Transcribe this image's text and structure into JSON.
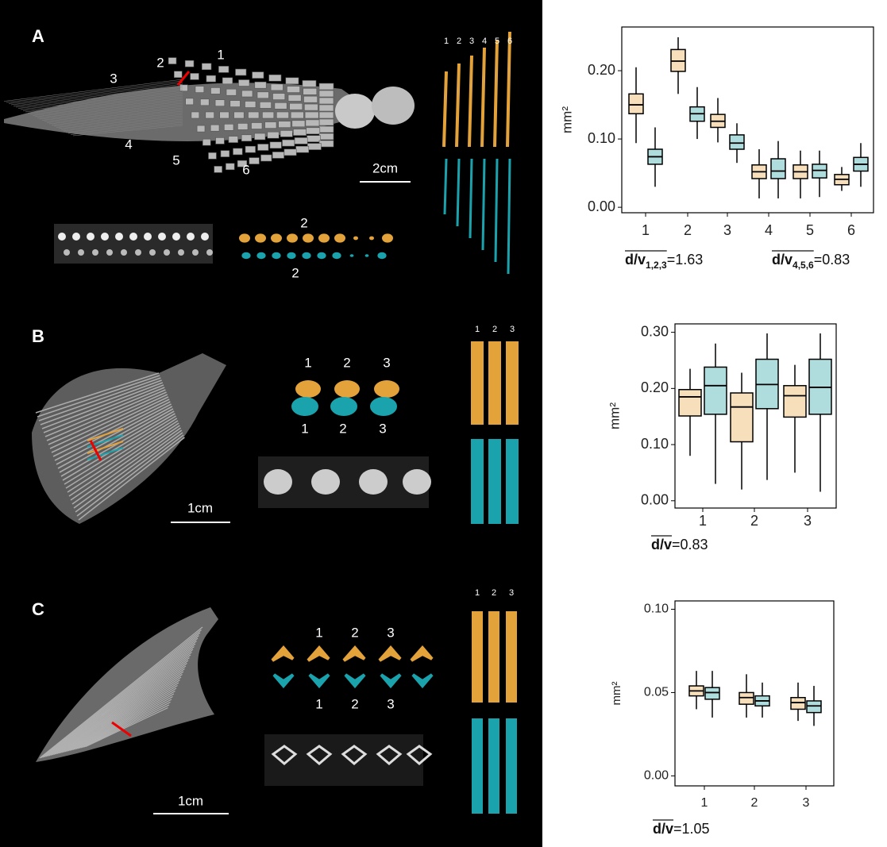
{
  "panels": [
    {
      "letter": "A",
      "fin_labels": [
        "1",
        "2",
        "3",
        "4",
        "5",
        "6"
      ],
      "scale_bar": "2cm",
      "section_labels": [
        "2",
        "2"
      ],
      "column_labels": [
        "1",
        "2",
        "3",
        "4",
        "5",
        "6"
      ]
    },
    {
      "letter": "B",
      "scale_bar": "1cm",
      "section_labels_top": [
        "1",
        "2",
        "3"
      ],
      "section_labels_bottom": [
        "1",
        "2",
        "3"
      ],
      "column_labels": [
        "1",
        "2",
        "3"
      ]
    },
    {
      "letter": "C",
      "scale_bar": "1cm",
      "section_labels_top": [
        "1",
        "2",
        "3"
      ],
      "section_labels_bottom": [
        "1",
        "2",
        "3"
      ],
      "column_labels": [
        "1",
        "2",
        "3"
      ]
    }
  ],
  "chart_data": [
    {
      "type": "box",
      "y_label": "mm²",
      "categories": [
        "1",
        "2",
        "3",
        "4",
        "5",
        "6"
      ],
      "ylim": [
        -0.008,
        0.264
      ],
      "yticks": [
        {
          "value": 0,
          "label": "0.00"
        },
        {
          "value": 0.1,
          "label": "0.10"
        },
        {
          "value": 0.2,
          "label": "0.20"
        }
      ],
      "series": [
        {
          "color": "#e8a33d",
          "boxes": [
            {
              "min": 0.094,
              "q1": 0.137,
              "median": 0.15,
              "q3": 0.166,
              "max": 0.205
            },
            {
              "min": 0.166,
              "q1": 0.199,
              "median": 0.214,
              "q3": 0.231,
              "max": 0.249
            },
            {
              "min": 0.095,
              "q1": 0.117,
              "median": 0.126,
              "q3": 0.136,
              "max": 0.16
            },
            {
              "min": 0.013,
              "q1": 0.042,
              "median": 0.052,
              "q3": 0.062,
              "max": 0.085
            },
            {
              "min": 0.013,
              "q1": 0.042,
              "median": 0.052,
              "q3": 0.062,
              "max": 0.083
            },
            {
              "min": 0.024,
              "q1": 0.033,
              "median": 0.041,
              "q3": 0.048,
              "max": 0.059
            }
          ]
        },
        {
          "color": "#1a9a9f",
          "boxes": [
            {
              "min": 0.03,
              "q1": 0.063,
              "median": 0.074,
              "q3": 0.085,
              "max": 0.117
            },
            {
              "min": 0.1,
              "q1": 0.126,
              "median": 0.137,
              "q3": 0.147,
              "max": 0.176
            },
            {
              "min": 0.065,
              "q1": 0.085,
              "median": 0.094,
              "q3": 0.106,
              "max": 0.123
            },
            {
              "min": 0.013,
              "q1": 0.042,
              "median": 0.053,
              "q3": 0.071,
              "max": 0.097
            },
            {
              "min": 0.015,
              "q1": 0.043,
              "median": 0.054,
              "q3": 0.063,
              "max": 0.083
            },
            {
              "min": 0.03,
              "q1": 0.053,
              "median": 0.063,
              "q3": 0.073,
              "max": 0.094
            }
          ]
        }
      ],
      "annotations": [
        {
          "ratio": "d/v",
          "subscript": "1,2,3",
          "equals": "=1.63"
        },
        {
          "ratio": "d/v",
          "subscript": "4,5,6",
          "equals": "=0.83"
        }
      ]
    },
    {
      "type": "box",
      "y_label": "mm²",
      "categories": [
        "1",
        "2",
        "3"
      ],
      "ylim": [
        -0.013,
        0.315
      ],
      "yticks": [
        {
          "value": 0,
          "label": "0.00"
        },
        {
          "value": 0.1,
          "label": "0.10"
        },
        {
          "value": 0.2,
          "label": "0.20"
        },
        {
          "value": 0.3,
          "label": "0.30"
        }
      ],
      "series": [
        {
          "color": "#e8a33d",
          "boxes": [
            {
              "min": 0.08,
              "q1": 0.151,
              "median": 0.185,
              "q3": 0.198,
              "max": 0.235
            },
            {
              "min": 0.02,
              "q1": 0.105,
              "median": 0.167,
              "q3": 0.192,
              "max": 0.228
            },
            {
              "min": 0.05,
              "q1": 0.149,
              "median": 0.187,
              "q3": 0.205,
              "max": 0.242
            }
          ]
        },
        {
          "color": "#1a9a9f",
          "boxes": [
            {
              "min": 0.03,
              "q1": 0.154,
              "median": 0.205,
              "q3": 0.238,
              "max": 0.28
            },
            {
              "min": 0.037,
              "q1": 0.164,
              "median": 0.207,
              "q3": 0.252,
              "max": 0.298
            },
            {
              "min": 0.016,
              "q1": 0.154,
              "median": 0.202,
              "q3": 0.252,
              "max": 0.298
            }
          ]
        }
      ],
      "annotations": [
        {
          "ratio": "d/v",
          "equals": "=0.83"
        }
      ]
    },
    {
      "type": "box",
      "y_label": "mm²",
      "categories": [
        "1",
        "2",
        "3"
      ],
      "ylim": [
        -0.006,
        0.105
      ],
      "yticks": [
        {
          "value": 0,
          "label": "0.00"
        },
        {
          "value": 0.05,
          "label": "0.05"
        },
        {
          "value": 0.1,
          "label": "0.10"
        }
      ],
      "series": [
        {
          "color": "#e8a33d",
          "boxes": [
            {
              "min": 0.04,
              "q1": 0.048,
              "median": 0.051,
              "q3": 0.054,
              "max": 0.063
            },
            {
              "min": 0.035,
              "q1": 0.043,
              "median": 0.047,
              "q3": 0.05,
              "max": 0.061
            },
            {
              "min": 0.033,
              "q1": 0.04,
              "median": 0.044,
              "q3": 0.047,
              "max": 0.056
            }
          ]
        },
        {
          "color": "#1a9a9f",
          "boxes": [
            {
              "min": 0.035,
              "q1": 0.046,
              "median": 0.05,
              "q3": 0.053,
              "max": 0.063
            },
            {
              "min": 0.035,
              "q1": 0.042,
              "median": 0.045,
              "q3": 0.048,
              "max": 0.056
            },
            {
              "min": 0.03,
              "q1": 0.038,
              "median": 0.042,
              "q3": 0.045,
              "max": 0.054
            }
          ]
        }
      ],
      "annotations": [
        {
          "ratio": "d/v",
          "equals": "=1.05"
        }
      ]
    }
  ]
}
